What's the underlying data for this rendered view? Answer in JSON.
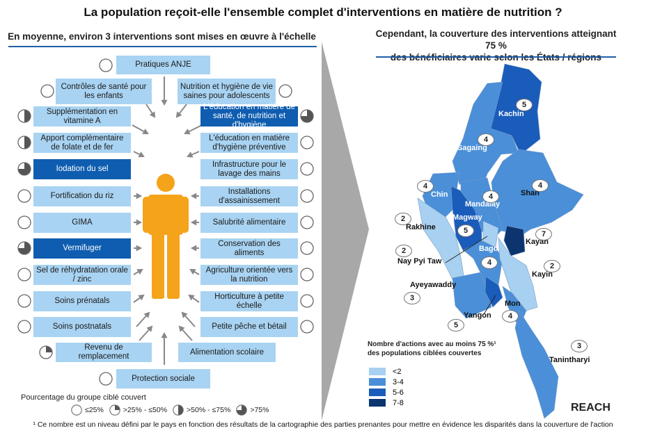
{
  "title": "La population reçoit-elle l'ensemble complet d'interventions en matière de nutrition ?",
  "left_subtitle": "En moyenne, environ 3 interventions sont mises en œuvre à l'échelle",
  "right_subtitle_1": "Cependant, la couverture des interventions atteignant 75 %",
  "right_subtitle_2": "des bénéficiaires varie selon les États / régions",
  "interventions": {
    "top": {
      "label": "Pratiques ANJE",
      "coverage": "<=25%",
      "highlighted": false
    },
    "left": [
      {
        "label": "Contrôles de santé pour les enfants",
        "coverage": "<=25%",
        "highlighted": false
      },
      {
        "label": "Supplémentation en vitamine A",
        "coverage": ">50%-<=75%",
        "highlighted": false
      },
      {
        "label": "Apport complémentaire de folate et de fer",
        "coverage": ">50%-<=75%",
        "highlighted": false
      },
      {
        "label": "Iodation du sel",
        "coverage": ">75%",
        "highlighted": true
      },
      {
        "label": "Fortification du riz",
        "coverage": "<=25%",
        "highlighted": false
      },
      {
        "label": "GIMA",
        "coverage": "<=25%",
        "highlighted": false
      },
      {
        "label": "Vermifuger",
        "coverage": ">75%",
        "highlighted": true
      },
      {
        "label": "Sel de réhydratation orale / zinc",
        "coverage": "<=25%",
        "highlighted": false
      },
      {
        "label": "Soins prénatals",
        "coverage": "<=25%",
        "highlighted": false
      },
      {
        "label": "Soins postnatals",
        "coverage": "<=25%",
        "highlighted": false
      }
    ],
    "right": [
      {
        "label": "Nutrition et hygiène de vie saines pour adolescents",
        "coverage": "<=25%",
        "highlighted": false
      },
      {
        "label": "L'éducation en matière de santé, de nutrition et d'hygiène",
        "coverage": ">75%",
        "highlighted": true
      },
      {
        "label": "L'éducation en matière d'hygiène préventive",
        "coverage": "<=25%",
        "highlighted": false
      },
      {
        "label": "Infrastructure pour le lavage des mains",
        "coverage": "<=25%",
        "highlighted": false
      },
      {
        "label": "Installations d'assainissement",
        "coverage": "<=25%",
        "highlighted": false
      },
      {
        "label": "Salubrité alimentaire",
        "coverage": "<=25%",
        "highlighted": false
      },
      {
        "label": "Conservation des aliments",
        "coverage": "<=25%",
        "highlighted": false
      },
      {
        "label": "Agriculture orientée vers la nutrition",
        "coverage": "<=25%",
        "highlighted": false
      },
      {
        "label": "Horticulture à petite échelle",
        "coverage": "<=25%",
        "highlighted": false
      },
      {
        "label": "Petite pêche et bétail",
        "coverage": "<=25%",
        "highlighted": false
      }
    ],
    "bottom_left": {
      "label": "Revenu de remplacement",
      "coverage": ">25%-<=50%",
      "highlighted": false
    },
    "bottom_right": {
      "label": "Alimentation scolaire",
      "coverage": null,
      "highlighted": false
    },
    "bottom": {
      "label": "Protection sociale",
      "coverage": "<=25%",
      "highlighted": false
    }
  },
  "coverage_legend": {
    "title": "Pourcentage du groupe ciblé couvert",
    "items": [
      {
        "key": "<=25%",
        "label": "≤25%"
      },
      {
        "key": ">25%-<=50%",
        "label": ">25% - ≤50%"
      },
      {
        "key": ">50%-<=75%",
        "label": ">50% - ≤75%"
      },
      {
        "key": ">75%",
        "label": ">75%"
      }
    ]
  },
  "map": {
    "regions": [
      {
        "name": "Kachin",
        "value": 5,
        "class": "5-6"
      },
      {
        "name": "Sagaing",
        "value": 4,
        "class": "3-4"
      },
      {
        "name": "Shan",
        "value": 4,
        "class": "3-4"
      },
      {
        "name": "Chin",
        "value": 4,
        "class": "3-4"
      },
      {
        "name": "Mandalay",
        "value": 4,
        "class": "3-4"
      },
      {
        "name": "Magway",
        "value": 5,
        "class": "5-6"
      },
      {
        "name": "Rakhine",
        "value": 2,
        "class": "<2"
      },
      {
        "name": "Nay Pyi Taw",
        "value": 2,
        "class": "<2"
      },
      {
        "name": "Kayah",
        "value": 7,
        "class": "7-8"
      },
      {
        "name": "Bago",
        "value": 4,
        "class": "3-4"
      },
      {
        "name": "Kayin",
        "value": 2,
        "class": "<2"
      },
      {
        "name": "Ayeyawaddy",
        "value": 3,
        "class": "3-4"
      },
      {
        "name": "Yangon",
        "value": 5,
        "class": "5-6"
      },
      {
        "name": "Mon",
        "value": 4,
        "class": "3-4"
      },
      {
        "name": "Tanintharyi",
        "value": 3,
        "class": "3-4"
      }
    ],
    "legend_title_1": "Nombre d'actions avec au moins 75 %¹",
    "legend_title_2": "des populations ciblées couvertes",
    "legend": [
      {
        "label": "<2",
        "color": "#a8d0f0"
      },
      {
        "label": "3-4",
        "color": "#4a8fd8"
      },
      {
        "label": "5-6",
        "color": "#1a5cba"
      },
      {
        "label": "7-8",
        "color": "#0c3570"
      }
    ]
  },
  "logo": "REACH",
  "footnote": "¹ Ce nombre est un niveau défini par le pays en fonction des résultats de la cartographie des parties prenantes pour mettre en évidence les disparités dans la couverture de l'action",
  "colors": {
    "box": "#a9d3f2",
    "box_highlight": "#0f5db0",
    "person": "#f5a31a",
    "rule": "#1f5fa8"
  }
}
